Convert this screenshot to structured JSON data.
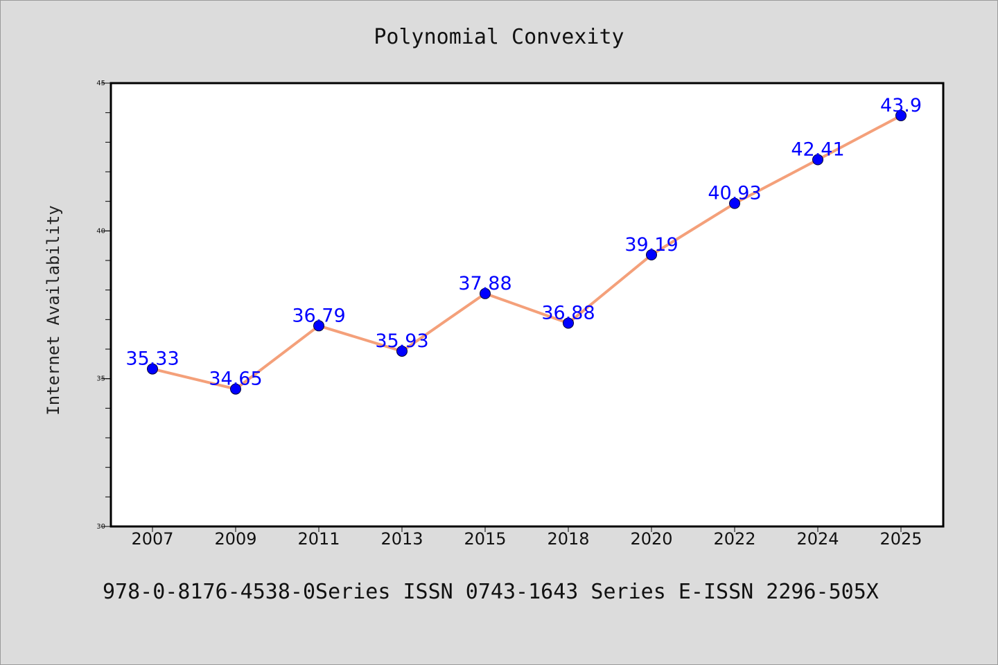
{
  "chart_data": {
    "type": "line",
    "title": "Polynomial Convexity",
    "xlabel": "",
    "ylabel": "Internet Availability",
    "categories": [
      "2007",
      "2009",
      "2011",
      "2013",
      "2015",
      "2018",
      "2020",
      "2022",
      "2024",
      "2025"
    ],
    "series": [
      {
        "values": [
          35.33,
          34.65,
          36.79,
          35.93,
          37.88,
          36.88,
          39.19,
          40.93,
          42.41,
          43.9
        ],
        "labels": [
          "35.33",
          "34.65",
          "36.79",
          "35.93",
          "37.88",
          "36.88",
          "39.19",
          "40.93",
          "42.41",
          "43.9"
        ],
        "line_color": "#f4a07a",
        "marker_color": "#0000ff"
      }
    ],
    "ylim": [
      30,
      45
    ],
    "yticks": [
      "30",
      "35",
      "40",
      "45"
    ],
    "grid": false,
    "legend": "none",
    "background": "#dcdcdc",
    "plot_background": "#ffffff"
  },
  "footer": {
    "text": "978-0-8176-4538-0Series ISSN 0743-1643 Series E-ISSN 2296-505X"
  }
}
